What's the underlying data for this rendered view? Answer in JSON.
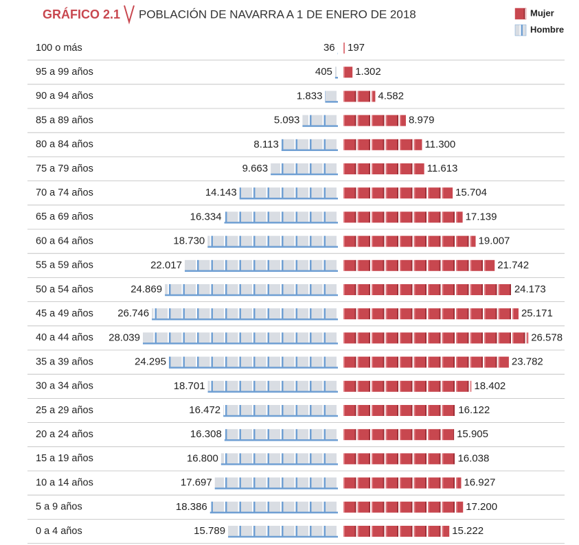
{
  "chart_data": {
    "type": "pyramid",
    "label": "GRÁFICO 2.1",
    "title": "POBLACIÓN DE NAVARRA A 1 DE ENERO DE 2018",
    "categories": [
      "100 o más",
      "95 a 99 años",
      "90 a 94 años",
      "85 a 89 años",
      "80 a 84 años",
      "75 a 79 años",
      "70 a 74 años",
      "65 a 69 años",
      "60 a 64 años",
      "55 a 59 años",
      "50 a 54 años",
      "45 a 49 años",
      "40 a 44 años",
      "35 a 39 años",
      "30 a 34 años",
      "25 a 29 años",
      "20 a 24 años",
      "15 a 19 años",
      "10 a 14 años",
      "5 a 9 años",
      "0 a 4 años"
    ],
    "series": [
      {
        "name": "Mujer",
        "color": "#c8474f",
        "values": [
          197,
          1302,
          4582,
          8979,
          11300,
          11613,
          15704,
          17139,
          19007,
          21742,
          24173,
          25171,
          26578,
          23782,
          18402,
          16122,
          15905,
          16038,
          16927,
          17200,
          15222
        ],
        "value_labels": [
          "197",
          "1.302",
          "4.582",
          "8.979",
          "11.300",
          "11.613",
          "15.704",
          "17.139",
          "19.007",
          "21.742",
          "24.173",
          "25.171",
          "26.578",
          "23.782",
          "18.402",
          "16.122",
          "15.905",
          "16.038",
          "16.927",
          "17.200",
          "15.222"
        ]
      },
      {
        "name": "Hombre",
        "color": "#6f9fd3",
        "values": [
          36,
          405,
          1833,
          5093,
          8113,
          9663,
          14143,
          16334,
          18730,
          22017,
          24869,
          26746,
          28039,
          24295,
          18701,
          16472,
          16308,
          16800,
          17697,
          18386,
          15789
        ],
        "value_labels": [
          "36",
          "405",
          "1.833",
          "5.093",
          "8.113",
          "9.663",
          "14.143",
          "16.334",
          "18.730",
          "22.017",
          "24.869",
          "26.746",
          "28.039",
          "24.295",
          "18.701",
          "16.472",
          "16.308",
          "16.800",
          "17.697",
          "18.386",
          "15.789"
        ]
      }
    ]
  }
}
